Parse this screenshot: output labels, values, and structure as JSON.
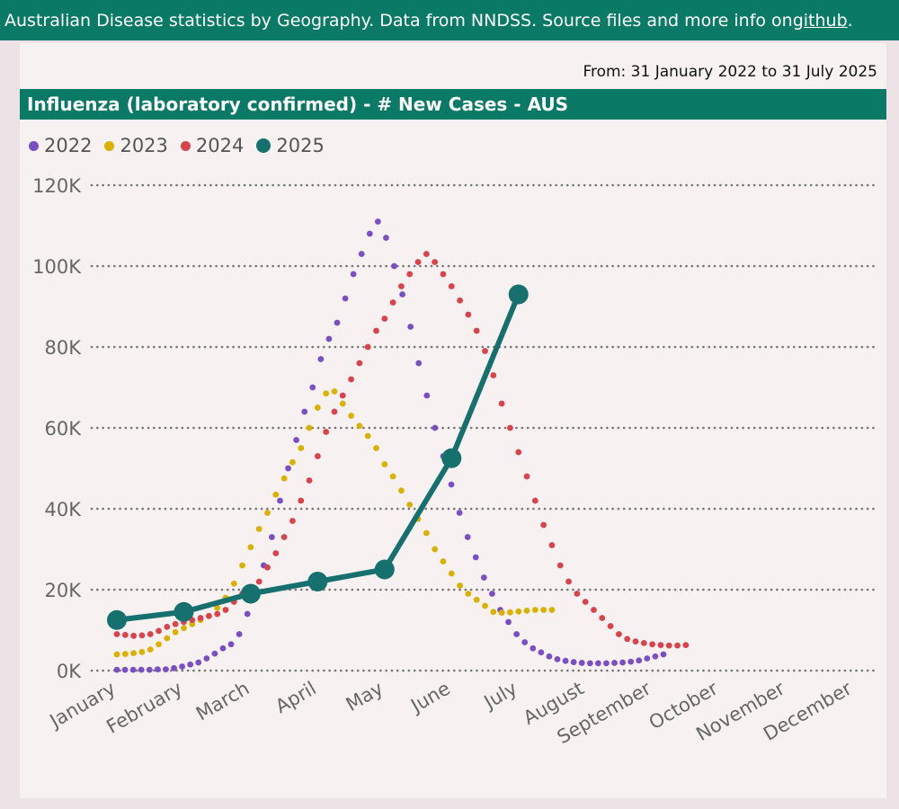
{
  "header": {
    "text": "Australian Disease statistics by Geography. Data from NNDSS. Source files and more info on ",
    "link_label": "github",
    "suffix": "."
  },
  "date_range": "From: 31 January 2022 to 31 July 2025",
  "colors": {
    "brand": "#0a7a66",
    "series_2022": "#7b4fc4",
    "series_2023": "#dab100",
    "series_2024": "#d9434c",
    "series_2025": "#16716e"
  },
  "chart_data": {
    "type": "line",
    "title": "Influenza (laboratory confirmed) - # New Cases - AUS",
    "ylim": [
      0,
      120000
    ],
    "y_ticks": [
      "0K",
      "20K",
      "40K",
      "60K",
      "80K",
      "100K",
      "120K"
    ],
    "y_tick_values": [
      0,
      20000,
      40000,
      60000,
      80000,
      100000,
      120000
    ],
    "grid": true,
    "legend_position": "top-left",
    "categories": [
      "January",
      "February",
      "March",
      "April",
      "May",
      "June",
      "July",
      "August",
      "September",
      "October",
      "November",
      "December"
    ],
    "series": [
      {
        "name": "2022",
        "style": "dotted",
        "points": [
          [
            0.0,
            200
          ],
          [
            0.125,
            200
          ],
          [
            0.25,
            200
          ],
          [
            0.375,
            200
          ],
          [
            0.5,
            200
          ],
          [
            0.625,
            300
          ],
          [
            0.75,
            300
          ],
          [
            0.875,
            600
          ],
          [
            1.0,
            1000
          ],
          [
            1.125,
            1500
          ],
          [
            1.25,
            2000
          ],
          [
            1.375,
            3000
          ],
          [
            1.5,
            4200
          ],
          [
            1.625,
            5500
          ],
          [
            1.75,
            6500
          ],
          [
            1.875,
            9000
          ],
          [
            2.0,
            14000
          ],
          [
            2.125,
            20000
          ],
          [
            2.25,
            26000
          ],
          [
            2.375,
            33000
          ],
          [
            2.5,
            42000
          ],
          [
            2.625,
            50000
          ],
          [
            2.75,
            57000
          ],
          [
            2.875,
            64000
          ],
          [
            3.0,
            70000
          ],
          [
            3.125,
            77000
          ],
          [
            3.25,
            82000
          ],
          [
            3.375,
            86000
          ],
          [
            3.5,
            92000
          ],
          [
            3.625,
            98000
          ],
          [
            3.75,
            103000
          ],
          [
            3.875,
            108000
          ],
          [
            4.0,
            111000
          ],
          [
            4.125,
            107000
          ],
          [
            4.25,
            100000
          ],
          [
            4.375,
            93000
          ],
          [
            4.5,
            85000
          ],
          [
            4.625,
            76000
          ],
          [
            4.75,
            68000
          ],
          [
            4.875,
            60000
          ],
          [
            5.0,
            53000
          ],
          [
            5.125,
            46000
          ],
          [
            5.25,
            39000
          ],
          [
            5.375,
            33000
          ],
          [
            5.5,
            28000
          ],
          [
            5.625,
            23000
          ],
          [
            5.75,
            19000
          ],
          [
            5.875,
            15000
          ],
          [
            6.0,
            12000
          ],
          [
            6.125,
            9000
          ],
          [
            6.25,
            7000
          ],
          [
            6.375,
            5500
          ],
          [
            6.5,
            4500
          ],
          [
            6.625,
            3500
          ],
          [
            6.75,
            2800
          ],
          [
            6.875,
            2400
          ],
          [
            7.0,
            2100
          ],
          [
            7.125,
            1900
          ],
          [
            7.25,
            1800
          ],
          [
            7.375,
            1800
          ],
          [
            7.5,
            1800
          ],
          [
            7.625,
            1900
          ],
          [
            7.75,
            2000
          ],
          [
            7.875,
            2200
          ],
          [
            8.0,
            2500
          ],
          [
            8.125,
            3000
          ],
          [
            8.25,
            3500
          ],
          [
            8.375,
            4000
          ]
        ]
      },
      {
        "name": "2023",
        "style": "dotted",
        "points": [
          [
            0,
            4000
          ],
          [
            0.25,
            4100
          ],
          [
            0.5,
            4300
          ],
          [
            0.75,
            4600
          ],
          [
            1,
            5200
          ],
          [
            1.25,
            6500
          ],
          [
            1.5,
            8000
          ],
          [
            1.75,
            9500
          ],
          [
            2,
            10500
          ],
          [
            2.25,
            11500
          ],
          [
            2.5,
            12500
          ],
          [
            2.75,
            13500
          ],
          [
            3,
            15500
          ],
          [
            3.25,
            18000
          ],
          [
            3.5,
            21500
          ],
          [
            3.75,
            26000
          ],
          [
            4,
            30500
          ],
          [
            4.25,
            35000
          ],
          [
            4.5,
            39000
          ],
          [
            4.75,
            43500
          ],
          [
            5,
            47500
          ],
          [
            5.25,
            51500
          ],
          [
            5.5,
            55000
          ],
          [
            5.75,
            60000
          ],
          [
            6,
            65000
          ],
          [
            6.25,
            68500
          ],
          [
            6.5,
            69000
          ],
          [
            6.75,
            66000
          ],
          [
            7,
            63000
          ],
          [
            7.25,
            60500
          ],
          [
            7.5,
            58000
          ],
          [
            7.75,
            55000
          ],
          [
            8,
            51000
          ],
          [
            8.25,
            48000
          ],
          [
            8.5,
            44500
          ],
          [
            8.75,
            41000
          ],
          [
            9,
            37500
          ],
          [
            9.25,
            34000
          ],
          [
            9.5,
            30000
          ],
          [
            9.75,
            27000
          ],
          [
            10,
            24000
          ],
          [
            10.25,
            21000
          ],
          [
            10.5,
            19000
          ],
          [
            10.75,
            17500
          ],
          [
            11,
            16000
          ],
          [
            11.25,
            14500
          ],
          [
            11.5,
            14300
          ],
          [
            11.75,
            14400
          ],
          [
            12,
            14600
          ],
          [
            12.25,
            14800
          ],
          [
            12.5,
            15000
          ],
          [
            12.75,
            15000
          ],
          [
            13,
            15000
          ]
        ]
      },
      {
        "name": "2024",
        "style": "dotted",
        "points": [
          [
            0,
            9000
          ],
          [
            0.25,
            8800
          ],
          [
            0.5,
            8600
          ],
          [
            0.75,
            8700
          ],
          [
            1,
            9000
          ],
          [
            1.25,
            9800
          ],
          [
            1.5,
            10800
          ],
          [
            1.75,
            11500
          ],
          [
            2,
            12000
          ],
          [
            2.25,
            12500
          ],
          [
            2.5,
            13000
          ],
          [
            2.75,
            13500
          ],
          [
            3,
            14000
          ],
          [
            3.25,
            15000
          ],
          [
            3.5,
            17000
          ],
          [
            3.75,
            19000
          ],
          [
            4,
            20500
          ],
          [
            4.25,
            22000
          ],
          [
            4.5,
            25500
          ],
          [
            4.75,
            29000
          ],
          [
            5,
            33000
          ],
          [
            5.25,
            37000
          ],
          [
            5.5,
            42000
          ],
          [
            5.75,
            47000
          ],
          [
            6,
            53000
          ],
          [
            6.25,
            59000
          ],
          [
            6.5,
            64000
          ],
          [
            6.75,
            68000
          ],
          [
            7,
            72000
          ],
          [
            7.25,
            76000
          ],
          [
            7.5,
            80000
          ],
          [
            7.75,
            84000
          ],
          [
            8,
            87000
          ],
          [
            8.25,
            91000
          ],
          [
            8.5,
            95000
          ],
          [
            8.75,
            98000
          ],
          [
            9,
            101000
          ],
          [
            9.25,
            103000
          ],
          [
            9.5,
            101000
          ],
          [
            9.75,
            98000
          ],
          [
            10,
            95000
          ],
          [
            10.25,
            91500
          ],
          [
            10.5,
            88000
          ],
          [
            10.75,
            84000
          ],
          [
            11,
            79000
          ],
          [
            11.25,
            73000
          ],
          [
            11.5,
            66000
          ],
          [
            11.75,
            60000
          ],
          [
            12,
            54000
          ],
          [
            12.25,
            48000
          ],
          [
            12.5,
            42000
          ],
          [
            12.75,
            36000
          ],
          [
            13,
            31000
          ],
          [
            13.25,
            26000
          ],
          [
            13.5,
            22000
          ],
          [
            13.75,
            19000
          ],
          [
            14,
            17000
          ],
          [
            14.25,
            15000
          ],
          [
            14.5,
            13000
          ],
          [
            14.75,
            11000
          ],
          [
            15,
            9000
          ],
          [
            15.25,
            7800
          ],
          [
            15.5,
            7200
          ],
          [
            15.75,
            6800
          ],
          [
            16,
            6500
          ],
          [
            16.25,
            6300
          ],
          [
            16.5,
            6200
          ],
          [
            16.75,
            6200
          ],
          [
            17,
            6300
          ]
        ]
      },
      {
        "name": "2025",
        "style": "solid",
        "points": [
          [
            0,
            12500
          ],
          [
            1,
            14500
          ],
          [
            2,
            19000
          ],
          [
            3,
            22000
          ],
          [
            4,
            25000
          ],
          [
            5,
            52500
          ],
          [
            6,
            93000
          ]
        ]
      }
    ]
  }
}
